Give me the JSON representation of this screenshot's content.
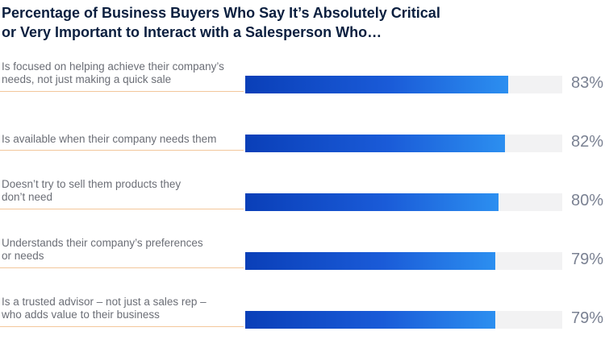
{
  "chart_data": {
    "type": "bar",
    "orientation": "horizontal",
    "title_lines": [
      "Percentage of Business Buyers Who Say It’s Absolutely Critical",
      "or Very Important to Interact with a Salesperson Who…"
    ],
    "xlim": [
      0,
      100
    ],
    "items": [
      {
        "label_lines": [
          "Is focused on helping achieve their company’s",
          "needs, not just making a quick sale"
        ],
        "value": 83,
        "value_label": "83%"
      },
      {
        "label_lines": [
          "Is available when their company needs them"
        ],
        "value": 82,
        "value_label": "82%"
      },
      {
        "label_lines": [
          "Doesn’t try to sell them products they",
          "don’t need"
        ],
        "value": 80,
        "value_label": "80%"
      },
      {
        "label_lines": [
          "Understands their company’s preferences",
          "or needs"
        ],
        "value": 79,
        "value_label": "79%"
      },
      {
        "label_lines": [
          "Is a trusted advisor – not just a sales rep –",
          "who adds value to their business"
        ],
        "value": 79,
        "value_label": "79%"
      }
    ],
    "colors": {
      "bar_start": "#0a3fb8",
      "bar_end": "#2c8ff0",
      "track": "#f2f2f3",
      "underline": "#f3c79b"
    }
  }
}
